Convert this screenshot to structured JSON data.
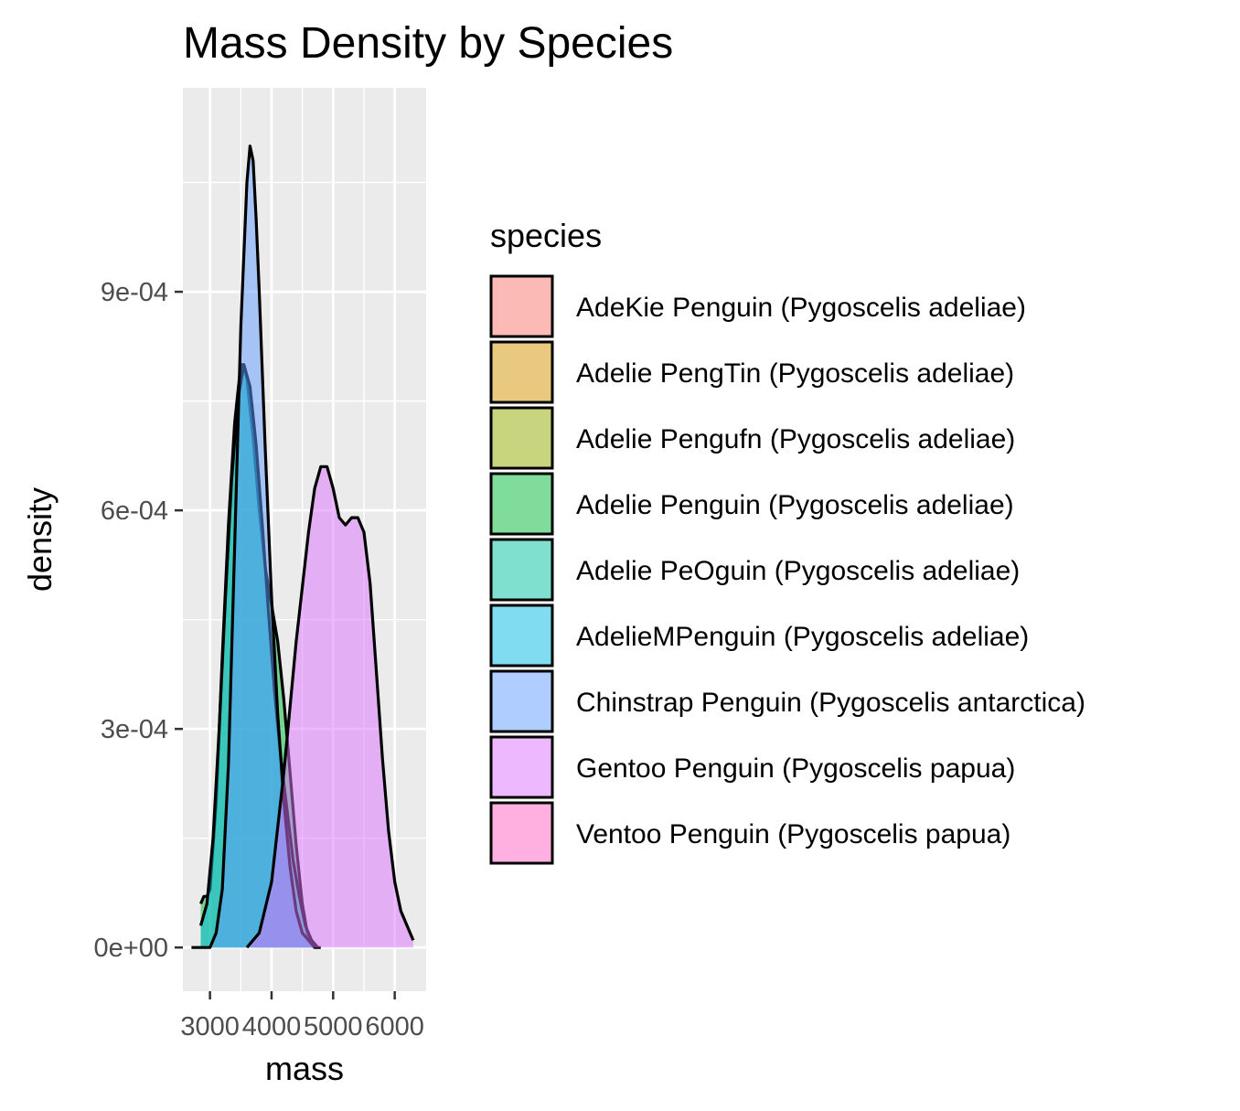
{
  "chart_data": {
    "type": "area",
    "title": "Mass Density by Species",
    "xlabel": "mass",
    "ylabel": "density",
    "xlim": [
      2560,
      6510
    ],
    "ylim": [
      -6e-05,
      0.00118
    ],
    "x_ticks": [
      3000,
      4000,
      5000,
      6000
    ],
    "x_tick_labels": [
      "3000",
      "4000",
      "5000",
      "6000"
    ],
    "y_ticks": [
      0,
      0.0003,
      0.0006,
      0.0009
    ],
    "y_tick_labels": [
      "0e+00",
      "3e-04",
      "6e-04",
      "9e-04"
    ],
    "grid": true,
    "legend_title": "species",
    "legend_position": "right",
    "fill_alpha": 0.5,
    "legend": [
      {
        "label": "AdeKie Penguin (Pygoscelis adeliae)",
        "color": "#F8766D"
      },
      {
        "label": "Adelie PengTin (Pygoscelis adeliae)",
        "color": "#D39200"
      },
      {
        "label": "Adelie Pengufn (Pygoscelis adeliae)",
        "color": "#93AA00"
      },
      {
        "label": "Adelie Penguin (Pygoscelis adeliae)",
        "color": "#00BA38"
      },
      {
        "label": "Adelie PeOguin (Pygoscelis adeliae)",
        "color": "#00C19F"
      },
      {
        "label": "AdelieMPenguin (Pygoscelis adeliae)",
        "color": "#00B9E3"
      },
      {
        "label": "Chinstrap Penguin (Pygoscelis antarctica)",
        "color": "#619CFF"
      },
      {
        "label": "Gentoo Penguin (Pygoscelis papua)",
        "color": "#DB72FB"
      },
      {
        "label": "Ventoo Penguin (Pygoscelis papua)",
        "color": "#FF61C3"
      }
    ],
    "series": [
      {
        "name": "Adelie Penguin (Pygoscelis adeliae)",
        "color": "#00BA38",
        "x": [
          2850,
          2900,
          2950,
          3000,
          3100,
          3200,
          3300,
          3400,
          3500,
          3550,
          3600,
          3700,
          3800,
          3900,
          4000,
          4100,
          4200,
          4300,
          4400,
          4500,
          4600,
          4700
        ],
        "values": [
          6e-05,
          7e-05,
          7e-05,
          8e-05,
          0.0002,
          0.0004,
          0.00058,
          0.00072,
          0.0008,
          0.0008,
          0.00078,
          0.0007,
          0.0006,
          0.00052,
          0.00047,
          0.00042,
          0.00034,
          0.00024,
          0.00014,
          6e-05,
          1e-05,
          0.0
        ]
      },
      {
        "name": "AdelieMPenguin (Pygoscelis adeliae)",
        "color": "#00B9E3",
        "x": [
          2850,
          2950,
          3050,
          3150,
          3250,
          3350,
          3450,
          3550,
          3650,
          3750,
          3850,
          3950,
          4050,
          4150,
          4250,
          4350,
          4450,
          4550,
          4650,
          4750
        ],
        "values": [
          3e-05,
          6e-05,
          0.00015,
          0.0003,
          0.00048,
          0.00064,
          0.00075,
          0.0008,
          0.00077,
          0.00069,
          0.00058,
          0.00046,
          0.00035,
          0.00026,
          0.00019,
          0.00012,
          7e-05,
          3e-05,
          1e-05,
          0.0
        ]
      },
      {
        "name": "Chinstrap Penguin (Pygoscelis antarctica)",
        "color": "#619CFF",
        "x": [
          2700,
          3000,
          3100,
          3200,
          3300,
          3400,
          3500,
          3600,
          3650,
          3700,
          3750,
          3800,
          3900,
          4000,
          4100,
          4200,
          4300,
          4400,
          4500,
          4600,
          4700,
          4800
        ],
        "values": [
          0.0,
          0.0,
          2e-05,
          8e-05,
          0.00025,
          0.00055,
          0.00085,
          0.00105,
          0.0011,
          0.00108,
          0.001,
          0.0009,
          0.00068,
          0.00048,
          0.00032,
          0.0002,
          0.00011,
          5e-05,
          2e-05,
          1e-05,
          0.0,
          0.0
        ]
      },
      {
        "name": "Gentoo Penguin (Pygoscelis papua)",
        "color": "#DB72FB",
        "x": [
          3600,
          3800,
          4000,
          4200,
          4400,
          4600,
          4700,
          4800,
          4900,
          5000,
          5100,
          5200,
          5300,
          5400,
          5500,
          5600,
          5700,
          5800,
          5900,
          6000,
          6100,
          6200,
          6300
        ],
        "values": [
          0.0,
          2e-05,
          9e-05,
          0.00024,
          0.00042,
          0.00057,
          0.00063,
          0.00066,
          0.00066,
          0.00063,
          0.00059,
          0.00058,
          0.00059,
          0.00059,
          0.00057,
          0.0005,
          0.00038,
          0.00026,
          0.00016,
          9e-05,
          5e-05,
          3e-05,
          1e-05
        ]
      }
    ]
  }
}
